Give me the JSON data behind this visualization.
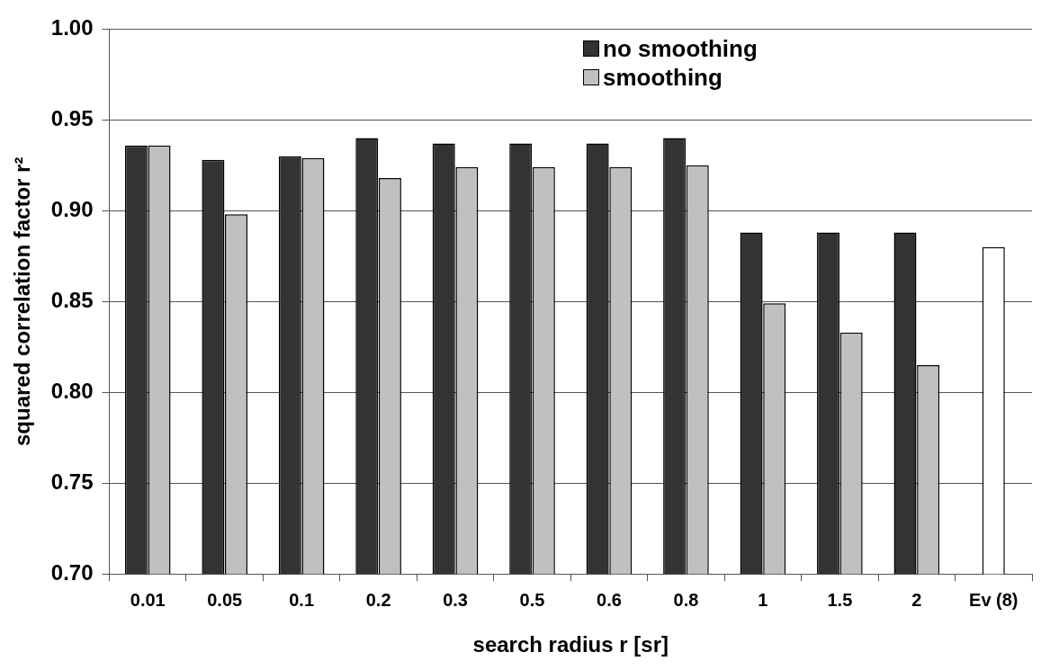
{
  "chart_data": {
    "type": "bar",
    "xlabel": "search radius r [sr]",
    "ylabel": "squared correlation factor r²",
    "categories": [
      "0.01",
      "0.05",
      "0.1",
      "0.2",
      "0.3",
      "0.5",
      "0.6",
      "0.8",
      "1",
      "1.5",
      "2",
      "Ev (8)"
    ],
    "series": [
      {
        "name": "no smoothing",
        "color": "#333333",
        "values": [
          0.936,
          0.928,
          0.93,
          0.94,
          0.937,
          0.937,
          0.937,
          0.94,
          0.888,
          0.888,
          0.888,
          null
        ]
      },
      {
        "name": "smoothing",
        "color": "#c0c0c0",
        "values": [
          0.936,
          0.898,
          0.929,
          0.918,
          0.924,
          0.924,
          0.924,
          0.925,
          0.849,
          0.833,
          0.815,
          null
        ]
      },
      {
        "color": "#ffffff",
        "values": [
          null,
          null,
          null,
          null,
          null,
          null,
          null,
          null,
          null,
          null,
          null,
          0.88
        ]
      }
    ],
    "ylim": [
      0.7,
      1.0
    ],
    "yticks": [
      {
        "value": 0.7,
        "label": "0.70"
      },
      {
        "value": 0.75,
        "label": "0.75"
      },
      {
        "value": 0.8,
        "label": "0.80"
      },
      {
        "value": 0.85,
        "label": "0.85"
      },
      {
        "value": 0.9,
        "label": "0.90"
      },
      {
        "value": 0.95,
        "label": "0.95"
      },
      {
        "value": 1.0,
        "label": "1.00"
      }
    ],
    "grid": "y",
    "legend": "top"
  }
}
